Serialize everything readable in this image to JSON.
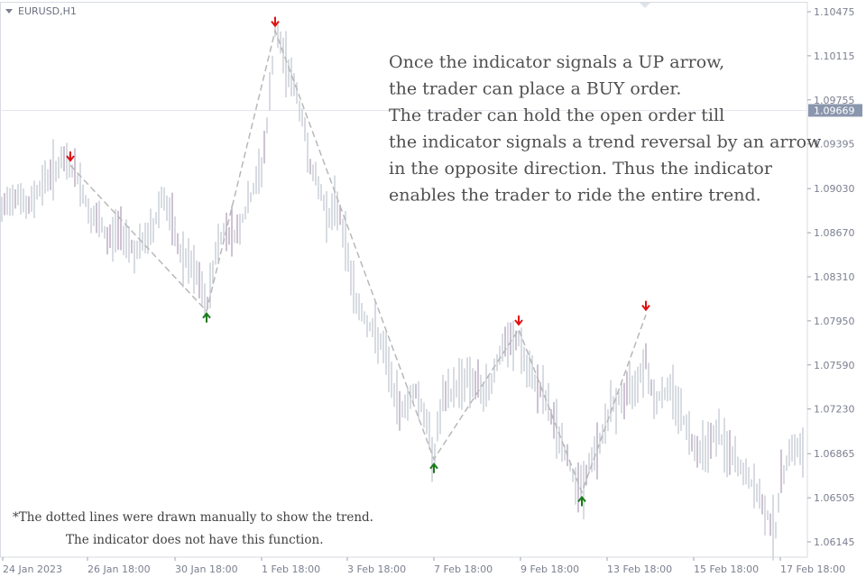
{
  "chart_data": {
    "type": "candlestick",
    "symbol_label": "EURUSD,H1",
    "y_axis": {
      "ticks": [
        "1.10475",
        "1.10115",
        "1.09755",
        "1.09395",
        "1.09030",
        "1.08670",
        "1.08310",
        "1.07950",
        "1.07590",
        "1.07230",
        "1.06865",
        "1.06505",
        "1.06145"
      ],
      "range": [
        1.0604,
        1.1058
      ],
      "current_price": "1.09669"
    },
    "x_axis": {
      "ticks": [
        "24 Jan 2023",
        "26 Jan 18:00",
        "30 Jan 18:00",
        "1 Feb 18:00",
        "3 Feb 18:00",
        "7 Feb 18:00",
        "9 Feb 18:00",
        "13 Feb 18:00",
        "15 Feb 18:00",
        "17 Feb 18:00"
      ]
    },
    "price_path": [
      [
        0,
        1.088
      ],
      [
        10,
        1.0895
      ],
      [
        20,
        1.09
      ],
      [
        30,
        1.0885
      ],
      [
        40,
        1.09
      ],
      [
        50,
        1.091
      ],
      [
        60,
        1.0918
      ],
      [
        70,
        1.0925
      ],
      [
        78,
        1.0922
      ],
      [
        90,
        1.0905
      ],
      [
        100,
        1.088
      ],
      [
        110,
        1.0875
      ],
      [
        120,
        1.086
      ],
      [
        130,
        1.087
      ],
      [
        140,
        1.0865
      ],
      [
        150,
        1.085
      ],
      [
        160,
        1.086
      ],
      [
        170,
        1.087
      ],
      [
        180,
        1.09
      ],
      [
        190,
        1.0875
      ],
      [
        200,
        1.085
      ],
      [
        210,
        1.084
      ],
      [
        220,
        1.083
      ],
      [
        229,
        1.0805
      ],
      [
        240,
        1.0855
      ],
      [
        250,
        1.087
      ],
      [
        260,
        1.0865
      ],
      [
        270,
        1.088
      ],
      [
        280,
        1.09
      ],
      [
        290,
        1.092
      ],
      [
        297,
        1.096
      ],
      [
        305,
        1.1032
      ],
      [
        315,
        1.101
      ],
      [
        325,
        1.099
      ],
      [
        335,
        1.096
      ],
      [
        345,
        1.092
      ],
      [
        355,
        1.09
      ],
      [
        365,
        1.088
      ],
      [
        375,
        1.089
      ],
      [
        385,
        1.085
      ],
      [
        395,
        1.081
      ],
      [
        410,
        1.079
      ],
      [
        420,
        1.078
      ],
      [
        430,
        1.076
      ],
      [
        440,
        1.0725
      ],
      [
        450,
        1.0725
      ],
      [
        460,
        1.074
      ],
      [
        470,
        1.072
      ],
      [
        481,
        1.0683
      ],
      [
        490,
        1.073
      ],
      [
        500,
        1.0735
      ],
      [
        510,
        1.0745
      ],
      [
        520,
        1.075
      ],
      [
        530,
        1.074
      ],
      [
        540,
        1.0735
      ],
      [
        550,
        1.076
      ],
      [
        560,
        1.0775
      ],
      [
        567,
        1.0775
      ],
      [
        575,
        1.078
      ],
      [
        585,
        1.075
      ],
      [
        595,
        1.0745
      ],
      [
        605,
        1.073
      ],
      [
        615,
        1.071
      ],
      [
        625,
        1.069
      ],
      [
        635,
        1.067
      ],
      [
        645,
        1.0658
      ],
      [
        655,
        1.068
      ],
      [
        665,
        1.0695
      ],
      [
        675,
        1.072
      ],
      [
        685,
        1.073
      ],
      [
        695,
        1.0735
      ],
      [
        705,
        1.0745
      ],
      [
        716,
        1.0765
      ],
      [
        725,
        1.073
      ],
      [
        735,
        1.0735
      ],
      [
        745,
        1.074
      ],
      [
        755,
        1.072
      ],
      [
        765,
        1.07
      ],
      [
        775,
        1.069
      ],
      [
        785,
        1.0695
      ],
      [
        795,
        1.0705
      ],
      [
        805,
        1.069
      ],
      [
        815,
        1.068
      ],
      [
        825,
        1.067
      ],
      [
        835,
        1.066
      ],
      [
        845,
        1.0645
      ],
      [
        855,
        1.063
      ],
      [
        860,
        1.0625
      ],
      [
        865,
        1.066
      ],
      [
        875,
        1.069
      ],
      [
        885,
        1.069
      ],
      [
        893,
        1.0685
      ]
    ],
    "trend_lines": [
      [
        78,
        1.0922
      ],
      [
        229,
        1.0803
      ],
      [
        305,
        1.1032
      ],
      [
        481,
        1.0682
      ],
      [
        575,
        1.0788
      ],
      [
        645,
        1.0655
      ],
      [
        716,
        1.08
      ]
    ],
    "signals": [
      {
        "type": "down",
        "x": 78,
        "y": 1.0926
      },
      {
        "type": "up",
        "x": 229,
        "y": 1.0801
      },
      {
        "type": "down",
        "x": 305,
        "y": 1.1036
      },
      {
        "type": "up",
        "x": 481,
        "y": 1.0678
      },
      {
        "type": "down",
        "x": 575,
        "y": 1.0792
      },
      {
        "type": "up",
        "x": 645,
        "y": 1.0651
      },
      {
        "type": "down",
        "x": 716,
        "y": 1.0804
      }
    ],
    "annotation_lines": [
      "Once the indicator signals a UP arrow,",
      "the trader can place a BUY order.",
      "The trader can hold the open order till",
      "the indicator signals a trend reversal by an arrow",
      "in the opposite direction. Thus the indicator",
      "enables the trader to ride the entire trend."
    ],
    "note_lines": [
      "*The dotted lines were drawn manually to show the trend.",
      "The indicator does not have this function."
    ],
    "colors": {
      "candle": "#c8ccd6",
      "candle_alt": "#b9a8c0",
      "trend_line": "#b8b8b8",
      "up_arrow": "#1a7a1a",
      "down_arrow": "#e01010",
      "axis": "#9aa0b0",
      "current_price_bg": "#8a96ad"
    }
  }
}
